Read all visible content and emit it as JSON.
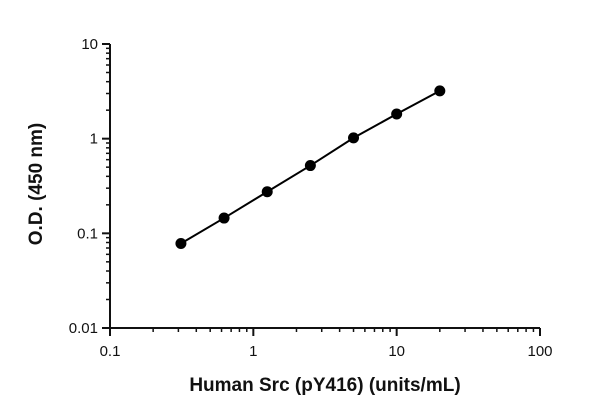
{
  "chart_data": {
    "type": "scatter",
    "title": "",
    "xlabel": "Human Src (pY416) (units/mL)",
    "ylabel": "O.D. (450 nm)",
    "x_scale": "log",
    "y_scale": "log",
    "xlim": [
      0.1,
      100
    ],
    "ylim": [
      0.01,
      10
    ],
    "x_ticks": [
      {
        "value": 0.1,
        "label": "0.1"
      },
      {
        "value": 1,
        "label": "1"
      },
      {
        "value": 10,
        "label": "10"
      },
      {
        "value": 100,
        "label": "100"
      }
    ],
    "y_ticks": [
      {
        "value": 0.01,
        "label": "0.01"
      },
      {
        "value": 0.1,
        "label": "0.1"
      },
      {
        "value": 1,
        "label": "1"
      },
      {
        "value": 10,
        "label": "10"
      }
    ],
    "grid": false,
    "legend": "none",
    "series": [
      {
        "points": [
          {
            "x": 0.3125,
            "y": 0.078
          },
          {
            "x": 0.625,
            "y": 0.145
          },
          {
            "x": 1.25,
            "y": 0.275
          },
          {
            "x": 2.5,
            "y": 0.52
          },
          {
            "x": 5,
            "y": 1.02
          },
          {
            "x": 10,
            "y": 1.82
          },
          {
            "x": 20,
            "y": 3.2
          }
        ],
        "color": "#000000",
        "connected": true
      }
    ]
  }
}
